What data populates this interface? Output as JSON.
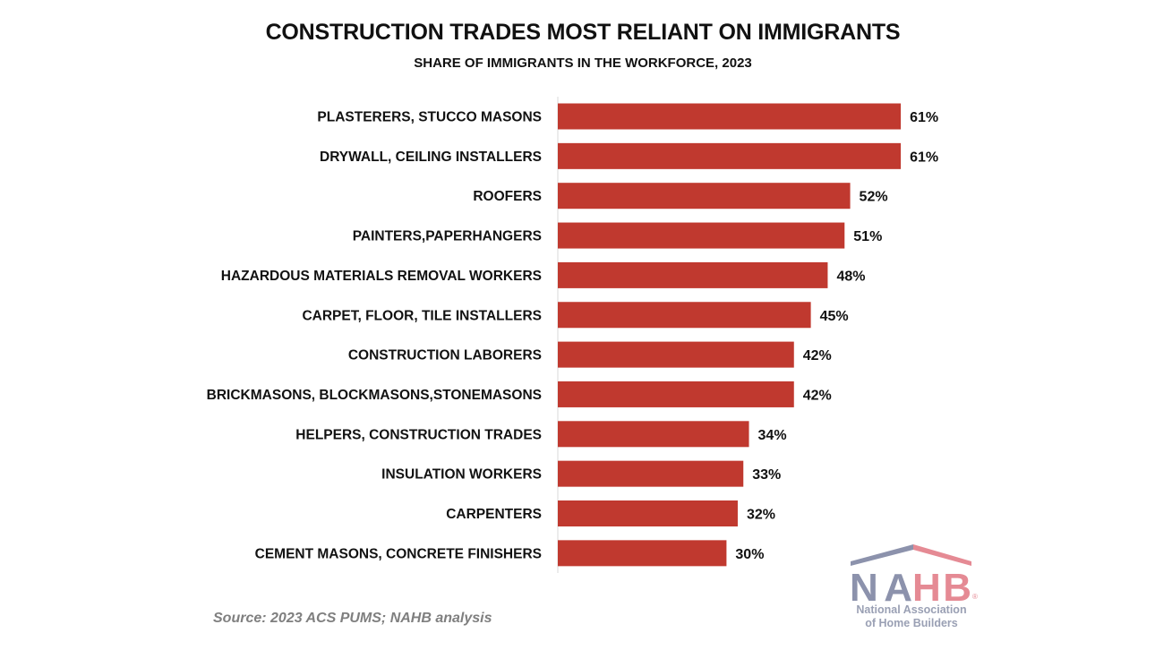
{
  "chart_data": {
    "type": "bar",
    "orientation": "horizontal",
    "title": "CONSTRUCTION TRADES MOST RELIANT ON IMMIGRANTS",
    "subtitle": "SHARE OF IMMIGRANTS IN THE WORKFORCE, 2023",
    "categories": [
      "PLASTERERS, STUCCO MASONS",
      "DRYWALL, CEILING INSTALLERS",
      "ROOFERS",
      "PAINTERS,PAPERHANGERS",
      "HAZARDOUS MATERIALS REMOVAL WORKERS",
      "CARPET, FLOOR, TILE INSTALLERS",
      "CONSTRUCTION LABORERS",
      "BRICKMASONS, BLOCKMASONS,STONEMASONS",
      "HELPERS, CONSTRUCTION TRADES",
      "INSULATION WORKERS",
      "CARPENTERS",
      "CEMENT MASONS, CONCRETE FINISHERS"
    ],
    "values": [
      61,
      61,
      52,
      51,
      48,
      45,
      42,
      42,
      34,
      33,
      32,
      30
    ],
    "data_labels": [
      "61%",
      "61%",
      "52%",
      "51%",
      "48%",
      "45%",
      "42%",
      "42%",
      "34%",
      "33%",
      "32%",
      "30%"
    ],
    "unit": "%",
    "xlim": [
      0,
      65
    ],
    "grid": false,
    "bar_color": "#c0392f",
    "source": "Source: 2023 ACS PUMS; NAHB analysis"
  },
  "logo": {
    "text": "NAHB",
    "tagline": "National Association of Home Builders",
    "colors": {
      "blue": "#8c92ac",
      "red": "#e58a94"
    }
  }
}
